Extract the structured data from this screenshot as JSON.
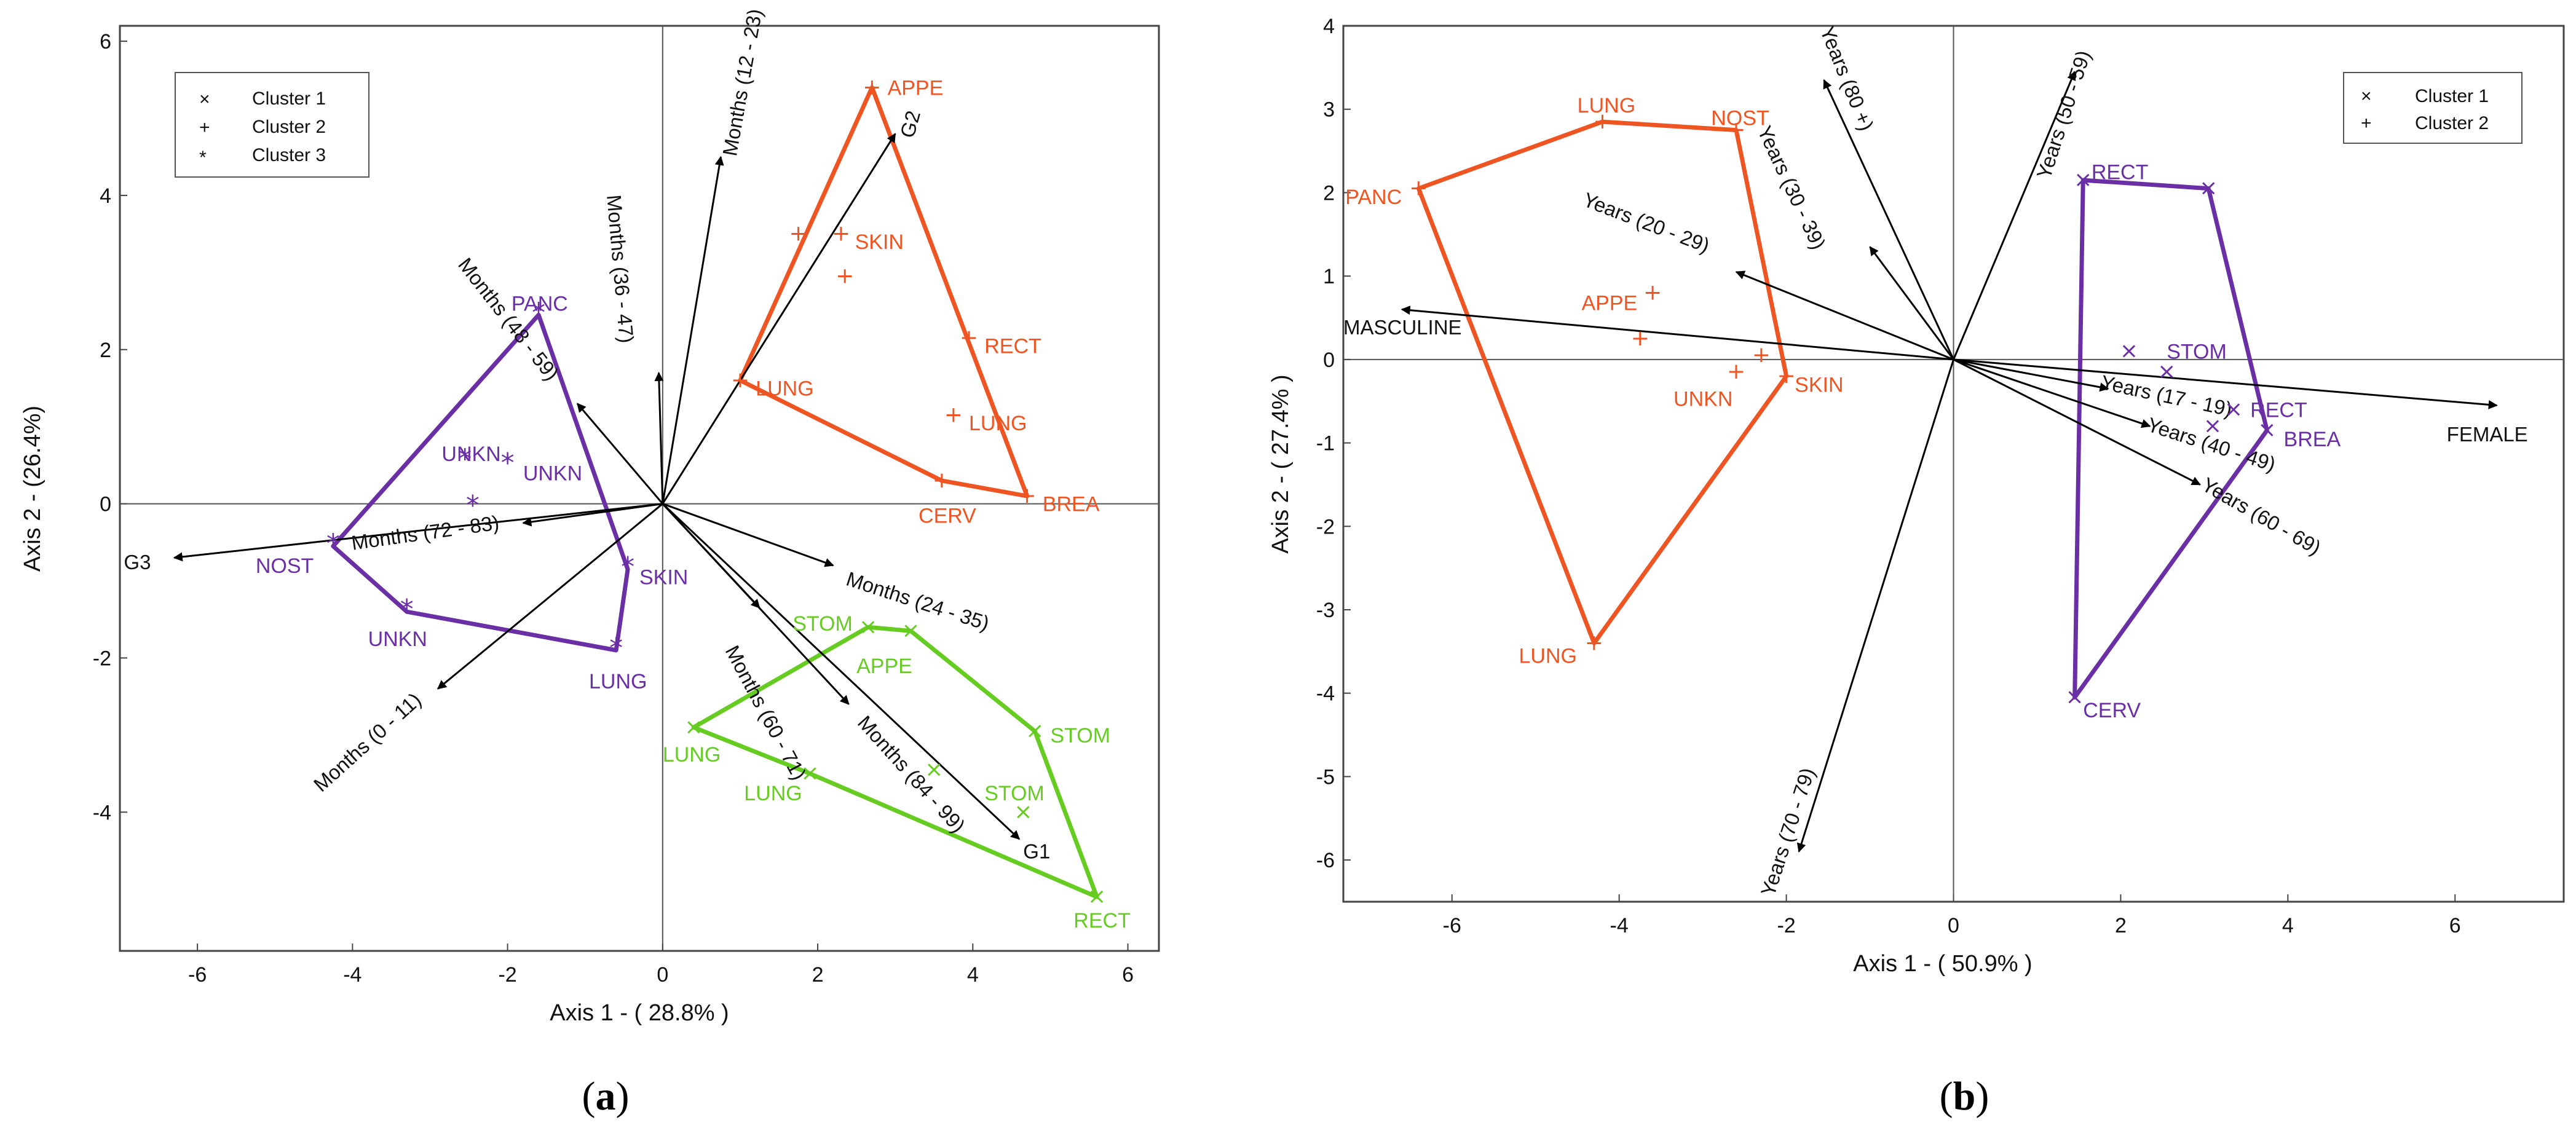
{
  "colors": {
    "cluster1": "#66cc22",
    "cluster2": "#ee5522",
    "cluster3": "#6a2fa5",
    "b_cluster1": "#6a2fa5",
    "b_cluster2": "#ee5522",
    "vector": "#000000",
    "axis": "#333333"
  },
  "chart_data": [
    {
      "type": "scatter",
      "panel": "(a)",
      "caption": "a",
      "xlabel": "Axis 1 - ( 28.8% )",
      "ylabel": "Axis 2 - (26.4%)",
      "xlim": [
        -7,
        6.4
      ],
      "ylim": [
        -5.8,
        6.2
      ],
      "xticks": [
        -6,
        -4,
        -2,
        0,
        2,
        4,
        6
      ],
      "yticks": [
        -4,
        -2,
        0,
        2,
        4,
        6
      ],
      "legend": {
        "position": "top-left",
        "entries": [
          {
            "label": "Cluster 1",
            "marker": "×",
            "color_key": "cluster1"
          },
          {
            "label": "Cluster 2",
            "marker": "+",
            "color_key": "cluster2"
          },
          {
            "label": "Cluster 3",
            "marker": "*",
            "color_key": "cluster3"
          }
        ]
      },
      "vectors": [
        {
          "label": "Months (12 - 23)",
          "x": 0.75,
          "y": 4.5,
          "lx": 0.95,
          "ly": 4.5,
          "rot": -80,
          "anchor": "start"
        },
        {
          "label": "Months (36 - 47)",
          "x": -0.05,
          "y": 1.7,
          "lx": -0.72,
          "ly": 4.0,
          "rot": 85,
          "anchor": "start"
        },
        {
          "label": "G2",
          "x": 3.0,
          "y": 4.8,
          "lx": 3.28,
          "ly": 4.9,
          "rot": -75,
          "anchor": "middle"
        },
        {
          "label": "Months (48 - 59)",
          "x": -1.1,
          "y": 1.3,
          "lx": -2.65,
          "ly": 3.1,
          "rot": 52,
          "anchor": "start"
        },
        {
          "label": "G3",
          "x": -6.3,
          "y": -0.7,
          "lx": -6.6,
          "ly": -0.85,
          "rot": 0,
          "anchor": "end"
        },
        {
          "label": "Months (72 - 83)",
          "x": -1.8,
          "y": -0.25,
          "lx": -4.0,
          "ly": -0.6,
          "rot": -8,
          "anchor": "start"
        },
        {
          "label": "Months (0 - 11)",
          "x": -2.9,
          "y": -2.4,
          "lx": -4.4,
          "ly": -3.75,
          "rot": -42,
          "anchor": "start"
        },
        {
          "label": "Months (24 - 35)",
          "x": 2.2,
          "y": -0.8,
          "lx": 2.35,
          "ly": -1.05,
          "rot": 18,
          "anchor": "start"
        },
        {
          "label": "Months (60 - 71)",
          "x": 1.25,
          "y": -1.35,
          "lx": 0.8,
          "ly": -1.9,
          "rot": 62,
          "anchor": "start"
        },
        {
          "label": "Months (84 - 99)",
          "x": 2.4,
          "y": -2.6,
          "lx": 2.5,
          "ly": -2.85,
          "rot": 48,
          "anchor": "start"
        },
        {
          "label": "G1",
          "x": 4.6,
          "y": -4.35,
          "lx": 4.65,
          "ly": -4.6,
          "rot": 0,
          "anchor": "start"
        }
      ],
      "series": [
        {
          "name": "Cluster 1",
          "color_key": "cluster1",
          "marker": "x",
          "hull": [
            [
              0.4,
              -2.9
            ],
            [
              2.65,
              -1.6
            ],
            [
              3.2,
              -1.65
            ],
            [
              4.8,
              -2.95
            ],
            [
              5.6,
              -5.1
            ],
            [
              1.9,
              -3.5
            ]
          ],
          "points": [
            {
              "x": 2.65,
              "y": -1.6,
              "label": "STOM",
              "lx": 2.45,
              "ly": -1.55,
              "anchor": "end"
            },
            {
              "x": 3.2,
              "y": -1.65,
              "label": "APPE",
              "lx": 2.5,
              "ly": -2.1,
              "anchor": "start"
            },
            {
              "x": 4.8,
              "y": -2.95,
              "label": "STOM",
              "lx": 5.0,
              "ly": -3.0,
              "anchor": "start"
            },
            {
              "x": 3.5,
              "y": -3.45,
              "label": "",
              "lx": 0,
              "ly": 0,
              "anchor": "start"
            },
            {
              "x": 4.65,
              "y": -4.0,
              "label": "STOM",
              "lx": 4.15,
              "ly": -3.75,
              "anchor": "start"
            },
            {
              "x": 5.6,
              "y": -5.1,
              "label": "RECT",
              "lx": 5.3,
              "ly": -5.4,
              "anchor": "start"
            },
            {
              "x": 0.4,
              "y": -2.9,
              "label": "LUNG",
              "lx": 0.0,
              "ly": -3.25,
              "anchor": "start"
            },
            {
              "x": 1.9,
              "y": -3.5,
              "label": "LUNG",
              "lx": 1.05,
              "ly": -3.75,
              "anchor": "start"
            }
          ]
        },
        {
          "name": "Cluster 2",
          "color_key": "cluster2",
          "marker": "+",
          "hull": [
            [
              2.7,
              5.4
            ],
            [
              4.7,
              0.1
            ],
            [
              3.6,
              0.3
            ],
            [
              1.0,
              1.6
            ]
          ],
          "points": [
            {
              "x": 2.7,
              "y": 5.4,
              "label": "APPE",
              "lx": 2.9,
              "ly": 5.4,
              "anchor": "start"
            },
            {
              "x": 1.75,
              "y": 3.5,
              "label": "",
              "lx": 0,
              "ly": 0,
              "anchor": "start"
            },
            {
              "x": 2.3,
              "y": 3.5,
              "label": "SKIN",
              "lx": 2.48,
              "ly": 3.4,
              "anchor": "start"
            },
            {
              "x": 2.35,
              "y": 2.95,
              "label": "",
              "lx": 0,
              "ly": 0,
              "anchor": "start"
            },
            {
              "x": 1.0,
              "y": 1.6,
              "label": "LUNG",
              "lx": 1.2,
              "ly": 1.5,
              "anchor": "start"
            },
            {
              "x": 3.95,
              "y": 2.15,
              "label": "RECT",
              "lx": 4.15,
              "ly": 2.05,
              "anchor": "start"
            },
            {
              "x": 3.75,
              "y": 1.15,
              "label": "LUNG",
              "lx": 3.95,
              "ly": 1.05,
              "anchor": "start"
            },
            {
              "x": 3.6,
              "y": 0.3,
              "label": "CERV",
              "lx": 3.3,
              "ly": -0.15,
              "anchor": "start"
            },
            {
              "x": 4.7,
              "y": 0.1,
              "label": "BREA",
              "lx": 4.9,
              "ly": 0.0,
              "anchor": "start"
            }
          ]
        },
        {
          "name": "Cluster 3",
          "color_key": "cluster3",
          "marker": "*",
          "hull": [
            [
              -1.6,
              2.45
            ],
            [
              -0.45,
              -0.85
            ],
            [
              -0.6,
              -1.9
            ],
            [
              -3.3,
              -1.4
            ],
            [
              -4.25,
              -0.55
            ]
          ],
          "points": [
            {
              "x": -1.6,
              "y": 2.45,
              "label": "PANC",
              "lx": -1.95,
              "ly": 2.6,
              "anchor": "start"
            },
            {
              "x": -2.55,
              "y": 0.55,
              "label": "UNKN",
              "lx": -2.85,
              "ly": 0.65,
              "anchor": "start"
            },
            {
              "x": -2.0,
              "y": 0.5,
              "label": "UNKN",
              "lx": -1.8,
              "ly": 0.4,
              "anchor": "start"
            },
            {
              "x": -2.45,
              "y": -0.05,
              "label": "",
              "lx": 0,
              "ly": 0,
              "anchor": "start"
            },
            {
              "x": -4.25,
              "y": -0.55,
              "label": "NOST",
              "lx": -4.5,
              "ly": -0.8,
              "anchor": "end"
            },
            {
              "x": -0.45,
              "y": -0.85,
              "label": "SKIN",
              "lx": -0.3,
              "ly": -0.95,
              "anchor": "start"
            },
            {
              "x": -3.3,
              "y": -1.4,
              "label": "UNKN",
              "lx": -3.8,
              "ly": -1.75,
              "anchor": "start"
            },
            {
              "x": -0.6,
              "y": -1.9,
              "label": "LUNG",
              "lx": -0.95,
              "ly": -2.3,
              "anchor": "start"
            }
          ]
        }
      ]
    },
    {
      "type": "scatter",
      "panel": "(b)",
      "caption": "b",
      "xlabel": "Axis 1 - ( 50.9% )",
      "ylabel": "Axis 2 - ( 27.4% )",
      "xlim": [
        -7.3,
        7.3
      ],
      "ylim": [
        -6.5,
        4
      ],
      "xticks": [
        -6,
        -4,
        -2,
        0,
        2,
        4,
        6
      ],
      "yticks": [
        -6,
        -5,
        -4,
        -3,
        -2,
        -1,
        0,
        1,
        2,
        3,
        4
      ],
      "legend": {
        "position": "top-right",
        "entries": [
          {
            "label": "Cluster 1",
            "marker": "×",
            "color_key": "b_cluster1"
          },
          {
            "label": "Cluster 2",
            "marker": "+",
            "color_key": "b_cluster2"
          }
        ]
      },
      "vectors": [
        {
          "label": "Years (80 +)",
          "x": -1.55,
          "y": 3.35,
          "lx": -1.6,
          "ly": 3.95,
          "rot": 68,
          "anchor": "start"
        },
        {
          "label": "Years (50 - 59)",
          "x": 1.45,
          "y": 3.45,
          "lx": 1.15,
          "ly": 2.15,
          "rot": -72,
          "anchor": "start"
        },
        {
          "label": "Years (30 - 39)",
          "x": -1.0,
          "y": 1.35,
          "lx": -2.35,
          "ly": 2.75,
          "rot": 65,
          "anchor": "start"
        },
        {
          "label": "Years (20 - 29)",
          "x": -2.6,
          "y": 1.05,
          "lx": -4.45,
          "ly": 1.85,
          "rot": 21,
          "anchor": "start"
        },
        {
          "label": "MASCULINE",
          "x": -6.6,
          "y": 0.6,
          "lx": -7.3,
          "ly": 0.3,
          "rot": 0,
          "anchor": "start"
        },
        {
          "label": "FEMALE",
          "x": 6.5,
          "y": -0.55,
          "lx": 5.9,
          "ly": -0.98,
          "rot": 0,
          "anchor": "start"
        },
        {
          "label": "Years (17 - 19)",
          "x": 1.85,
          "y": -0.35,
          "lx": 1.75,
          "ly": -0.35,
          "rot": 12,
          "anchor": "start"
        },
        {
          "label": "Years (40 - 49)",
          "x": 2.35,
          "y": -0.8,
          "lx": 2.3,
          "ly": -0.85,
          "rot": 18,
          "anchor": "start"
        },
        {
          "label": "Years (60 - 69)",
          "x": 2.95,
          "y": -1.5,
          "lx": 2.95,
          "ly": -1.55,
          "rot": 30,
          "anchor": "start"
        },
        {
          "label": "Years (70 - 79)",
          "x": -1.85,
          "y": -5.9,
          "lx": -2.15,
          "ly": -6.45,
          "rot": -72,
          "anchor": "start"
        }
      ],
      "series": [
        {
          "name": "Cluster 1",
          "color_key": "b_cluster1",
          "marker": "x",
          "hull": [
            [
              1.55,
              2.15
            ],
            [
              3.05,
              2.05
            ],
            [
              3.75,
              -0.85
            ],
            [
              1.45,
              -4.05
            ]
          ],
          "points": [
            {
              "x": 1.55,
              "y": 2.15,
              "label": "RECT",
              "lx": 1.65,
              "ly": 2.25,
              "anchor": "start"
            },
            {
              "x": 3.05,
              "y": 2.05,
              "label": "",
              "lx": 0,
              "ly": 0,
              "anchor": "start"
            },
            {
              "x": 2.1,
              "y": 0.1,
              "label": "",
              "lx": 0,
              "ly": 0,
              "anchor": "start"
            },
            {
              "x": 2.55,
              "y": -0.15,
              "label": "STOM",
              "lx": 2.55,
              "ly": 0.1,
              "anchor": "start"
            },
            {
              "x": 3.35,
              "y": -0.6,
              "label": "RECT",
              "lx": 3.55,
              "ly": -0.6,
              "anchor": "start"
            },
            {
              "x": 3.1,
              "y": -0.8,
              "label": "",
              "lx": 0,
              "ly": 0,
              "anchor": "start"
            },
            {
              "x": 3.75,
              "y": -0.85,
              "label": "BREA",
              "lx": 3.95,
              "ly": -0.95,
              "anchor": "start"
            },
            {
              "x": 1.45,
              "y": -4.05,
              "label": "CERV",
              "lx": 1.55,
              "ly": -4.2,
              "anchor": "start"
            }
          ]
        },
        {
          "name": "Cluster 2",
          "color_key": "b_cluster2",
          "marker": "+",
          "hull": [
            [
              -4.2,
              2.85
            ],
            [
              -2.6,
              2.75
            ],
            [
              -2.0,
              -0.2
            ],
            [
              -4.3,
              -3.4
            ],
            [
              -6.4,
              2.05
            ]
          ],
          "points": [
            {
              "x": -6.4,
              "y": 2.05,
              "label": "PANC",
              "lx": -6.6,
              "ly": 1.95,
              "anchor": "end"
            },
            {
              "x": -4.2,
              "y": 2.85,
              "label": "LUNG",
              "lx": -4.5,
              "ly": 3.05,
              "anchor": "start"
            },
            {
              "x": -2.6,
              "y": 2.75,
              "label": "NOST",
              "lx": -2.9,
              "ly": 2.9,
              "anchor": "start"
            },
            {
              "x": -3.6,
              "y": 0.8,
              "label": "APPE",
              "lx": -4.45,
              "ly": 0.68,
              "anchor": "start"
            },
            {
              "x": -3.75,
              "y": 0.25,
              "label": "",
              "lx": 0,
              "ly": 0,
              "anchor": "start"
            },
            {
              "x": -2.3,
              "y": 0.05,
              "label": "",
              "lx": 0,
              "ly": 0,
              "anchor": "start"
            },
            {
              "x": -2.6,
              "y": -0.15,
              "label": "UNKN",
              "lx": -3.35,
              "ly": -0.47,
              "anchor": "start"
            },
            {
              "x": -2.0,
              "y": -0.2,
              "label": "SKIN",
              "lx": -1.9,
              "ly": -0.3,
              "anchor": "start"
            },
            {
              "x": -4.3,
              "y": -3.4,
              "label": "LUNG",
              "lx": -5.2,
              "ly": -3.55,
              "anchor": "start"
            }
          ]
        }
      ]
    }
  ]
}
